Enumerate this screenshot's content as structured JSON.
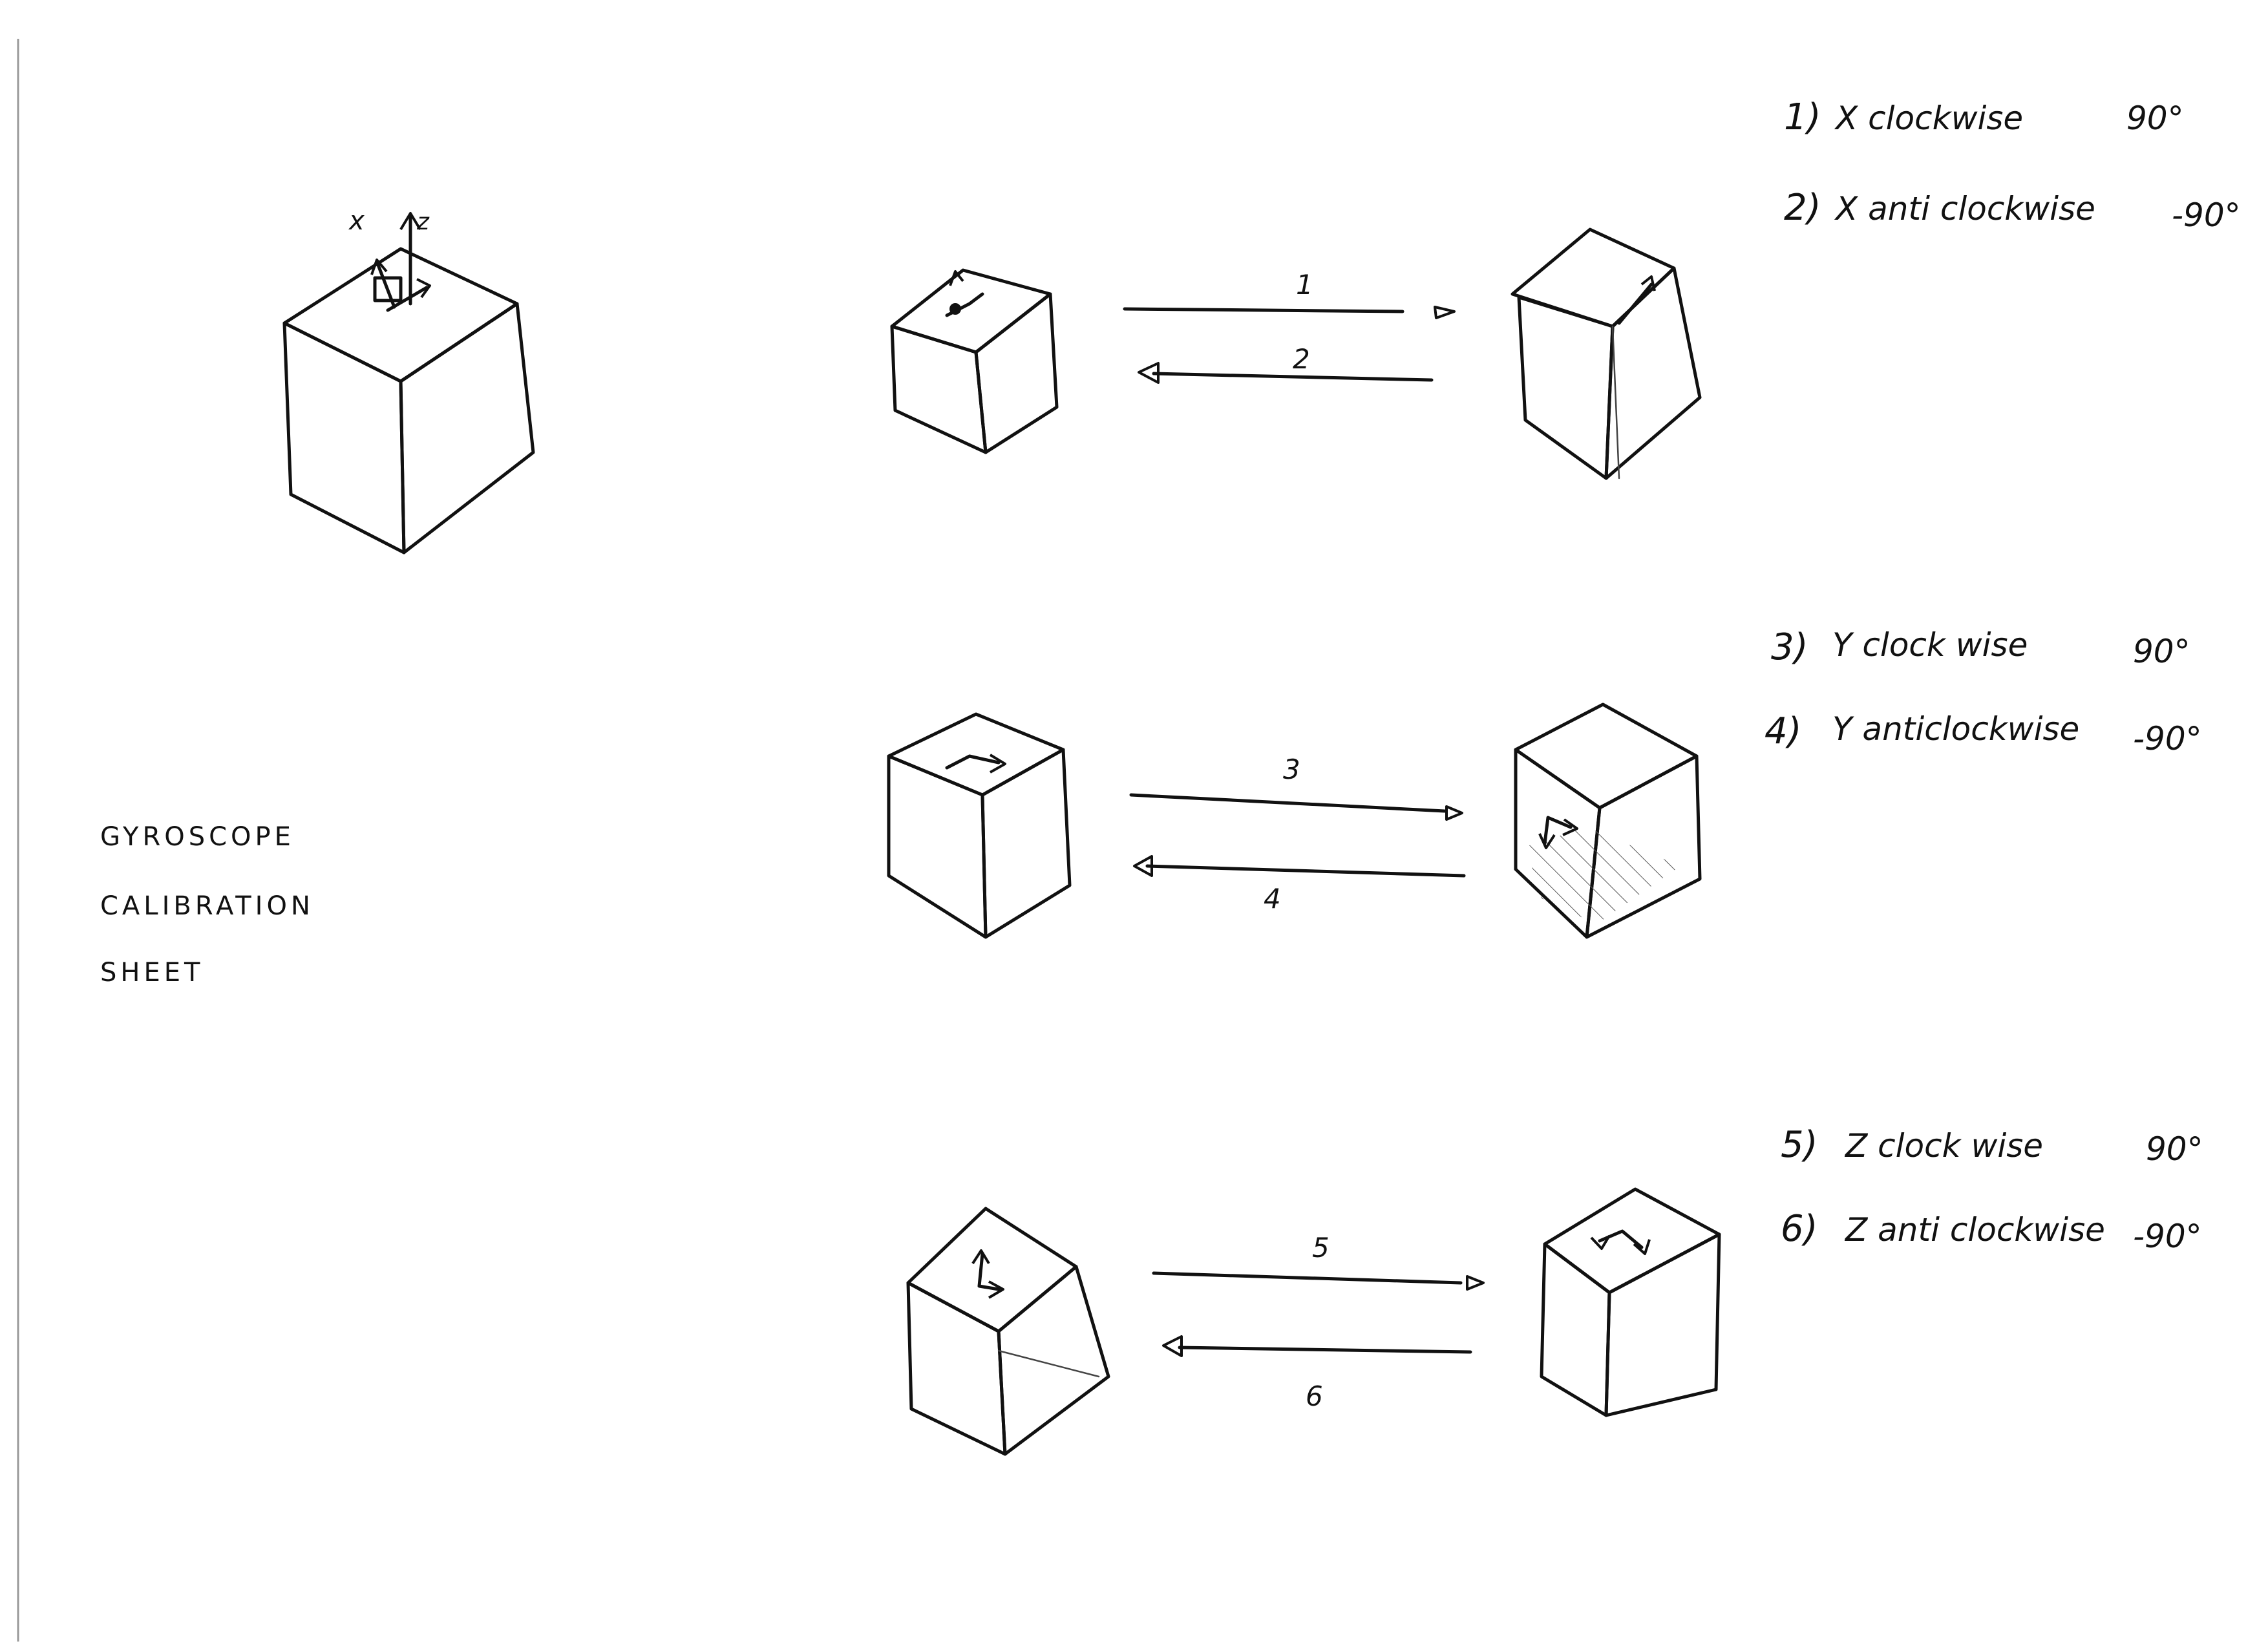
{
  "sheet": {
    "title_lines": [
      "GYROSCOPE",
      "CALIBRATION",
      "SHEET"
    ],
    "axes_labels": {
      "x": "x",
      "z": "z"
    }
  },
  "steps": [
    {
      "number": "1)",
      "text": "X clockwise",
      "angle": "90°"
    },
    {
      "number": "2)",
      "text": "X anti clockwise",
      "angle": "-90°"
    },
    {
      "number": "3)",
      "text": "Y clock wise",
      "angle": "90°"
    },
    {
      "number": "4)",
      "text": "Y anticlockwise",
      "angle": "-90°"
    },
    {
      "number": "5)",
      "text": "Z clock wise",
      "angle": "90°"
    },
    {
      "number": "6)",
      "text": "Z anti clockwise",
      "angle": "-90°"
    }
  ],
  "arrow_labels": [
    "1",
    "2",
    "3",
    "4",
    "5",
    "6"
  ],
  "colors": {
    "ink": "#111111",
    "paper": "#ffffff"
  }
}
